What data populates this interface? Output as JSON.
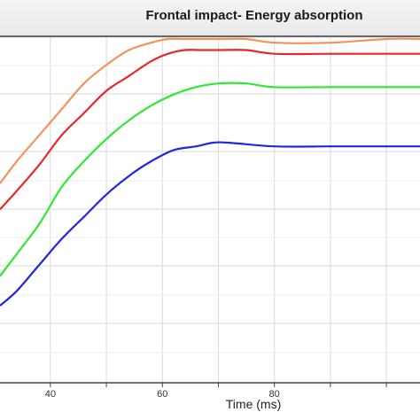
{
  "chart_data": {
    "type": "line",
    "title": "Frontal impact- Energy absorption",
    "xlabel": "Time (ms)",
    "ylabel": "",
    "xlim": [
      31,
      106
    ],
    "ylim": [
      0,
      1.0
    ],
    "x_ticks": [
      40,
      60,
      80
    ],
    "grid": true,
    "legend": "none",
    "series": [
      {
        "color": "#f4925a",
        "x": [
          31,
          34,
          38,
          42,
          46,
          50,
          54,
          58,
          61,
          64,
          67,
          70,
          75,
          80,
          90,
          100,
          106
        ],
        "y": [
          0.64,
          0.7,
          0.77,
          0.84,
          0.91,
          0.96,
          1.0,
          1.02,
          1.03,
          1.03,
          1.03,
          1.03,
          1.03,
          1.02,
          1.02,
          1.03,
          1.03
        ]
      },
      {
        "color": "#e8262b",
        "x": [
          31,
          34,
          38,
          42,
          46,
          50,
          54,
          58,
          61,
          64,
          67,
          70,
          75,
          80,
          90,
          100,
          106
        ],
        "y": [
          0.57,
          0.62,
          0.69,
          0.77,
          0.83,
          0.89,
          0.93,
          0.97,
          0.99,
          1.0,
          1.0,
          1.0,
          1.0,
          0.99,
          0.99,
          0.99,
          0.99
        ]
      },
      {
        "color": "#2fe832",
        "x": [
          31,
          34,
          38,
          42,
          46,
          50,
          54,
          58,
          62,
          66,
          70,
          75,
          80,
          90,
          100,
          106
        ],
        "y": [
          0.39,
          0.45,
          0.53,
          0.63,
          0.7,
          0.76,
          0.81,
          0.85,
          0.88,
          0.9,
          0.91,
          0.91,
          0.9,
          0.9,
          0.9,
          0.9
        ]
      },
      {
        "color": "#1e28e0",
        "x": [
          31,
          34,
          38,
          42,
          46,
          50,
          54,
          58,
          62,
          66,
          69,
          72,
          80,
          90,
          100,
          106
        ],
        "y": [
          0.31,
          0.35,
          0.42,
          0.49,
          0.55,
          0.61,
          0.66,
          0.7,
          0.73,
          0.74,
          0.75,
          0.75,
          0.74,
          0.74,
          0.74,
          0.74
        ]
      }
    ]
  }
}
